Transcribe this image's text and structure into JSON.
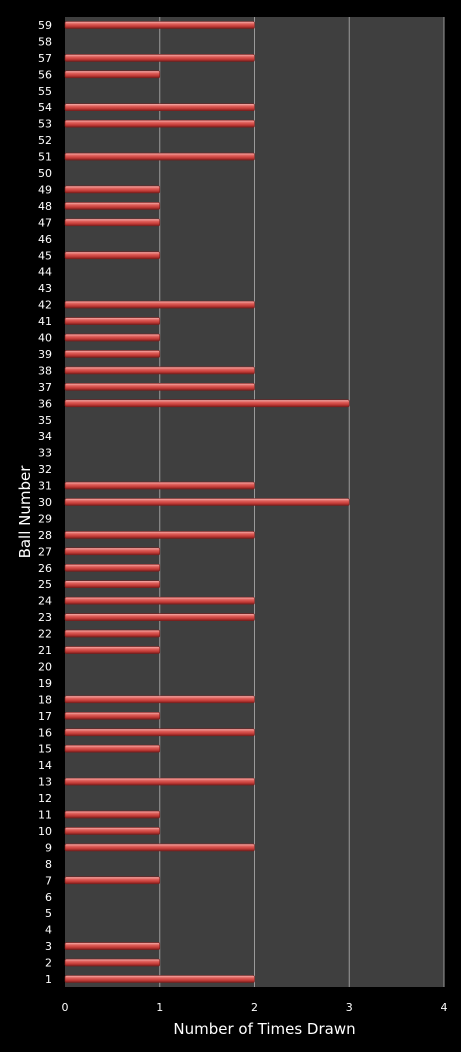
{
  "colors": {
    "background": "#000000",
    "plot_area": "#3f3f3f",
    "gridline": "#9a9a9a",
    "bar_fill": "#d9534f",
    "bar_highlight": "#f7b6b3",
    "bar_shadow": "#7a1e1c",
    "text": "#ffffff"
  },
  "chart_data": {
    "type": "bar",
    "orientation": "horizontal",
    "xlabel": "Number of Times Drawn",
    "ylabel": "Ball Number",
    "xlim": [
      0,
      4
    ],
    "xticks": [
      0,
      1,
      2,
      3,
      4
    ],
    "grid": "vertical",
    "categories": [
      "1",
      "2",
      "3",
      "4",
      "5",
      "6",
      "7",
      "8",
      "9",
      "10",
      "11",
      "12",
      "13",
      "14",
      "15",
      "16",
      "17",
      "18",
      "19",
      "20",
      "21",
      "22",
      "23",
      "24",
      "25",
      "26",
      "27",
      "28",
      "29",
      "30",
      "31",
      "32",
      "33",
      "34",
      "35",
      "36",
      "37",
      "38",
      "39",
      "40",
      "41",
      "42",
      "43",
      "44",
      "45",
      "46",
      "47",
      "48",
      "49",
      "50",
      "51",
      "52",
      "53",
      "54",
      "55",
      "56",
      "57",
      "58",
      "59"
    ],
    "values": [
      2,
      1,
      1,
      0,
      0,
      0,
      1,
      0,
      2,
      1,
      1,
      0,
      2,
      0,
      1,
      2,
      1,
      2,
      0,
      0,
      1,
      1,
      2,
      2,
      1,
      1,
      1,
      2,
      0,
      3,
      2,
      0,
      0,
      0,
      0,
      3,
      2,
      2,
      1,
      1,
      1,
      2,
      0,
      0,
      1,
      0,
      1,
      1,
      1,
      0,
      2,
      0,
      2,
      2,
      0,
      1,
      2,
      0,
      2
    ]
  }
}
